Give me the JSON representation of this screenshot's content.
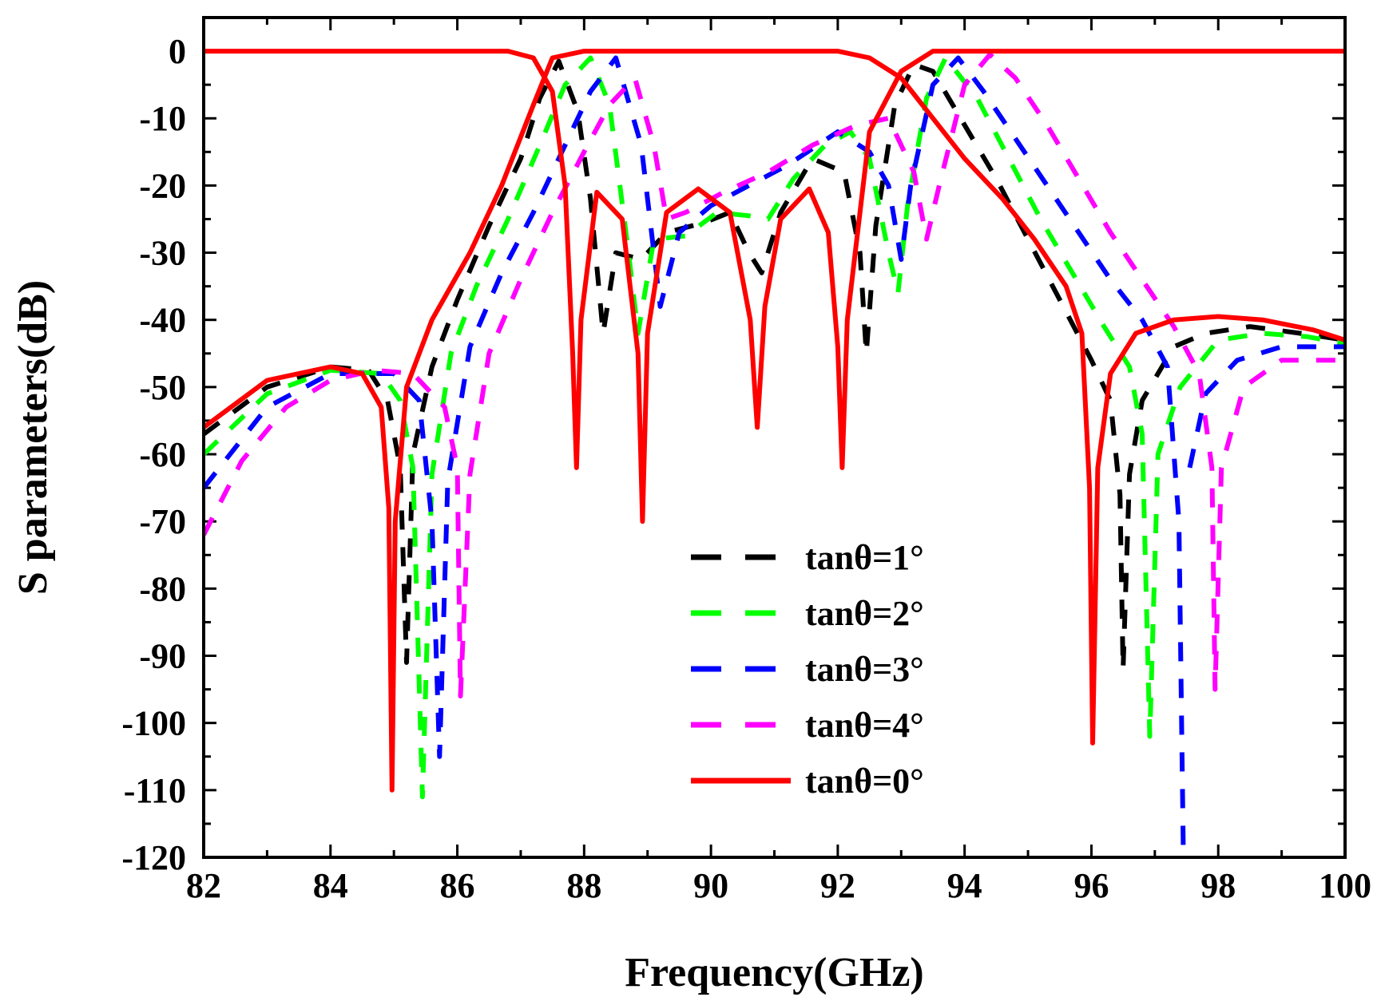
{
  "chart_data": {
    "type": "line",
    "title": "",
    "xlabel": "Frequency(GHz)",
    "ylabel": "S parameters(dB)",
    "xlim": [
      82,
      100
    ],
    "ylim": [
      -120,
      5
    ],
    "xticks": [
      82,
      84,
      86,
      88,
      90,
      92,
      94,
      96,
      98,
      100
    ],
    "yticks": [
      0,
      -10,
      -20,
      -30,
      -40,
      -50,
      -60,
      -70,
      -80,
      -90,
      -100,
      -110,
      -120
    ],
    "x_tick_labels": [
      "82",
      "84",
      "86",
      "88",
      "90",
      "92",
      "94",
      "96",
      "98",
      "100"
    ],
    "y_tick_labels": [
      "0",
      "-10",
      "-20",
      "-30",
      "-40",
      "-50",
      "-60",
      "-70",
      "-80",
      "-90",
      "-100",
      "-110",
      "-120"
    ],
    "grid": false,
    "legend_position": "bottom-center",
    "series": [
      {
        "name": "tanθ=1°",
        "color": "#000000",
        "dash": "dashed",
        "curves": [
          [
            [
              82,
              -57
            ],
            [
              83,
              -50
            ],
            [
              84,
              -47
            ],
            [
              84.6,
              -47.5
            ],
            [
              84.9,
              -52
            ],
            [
              85.1,
              -62
            ],
            [
              85.2,
              -91
            ],
            [
              85.3,
              -60
            ],
            [
              85.6,
              -47
            ],
            [
              86,
              -37
            ],
            [
              86.5,
              -26
            ],
            [
              87,
              -16
            ],
            [
              87.3,
              -7
            ],
            [
              87.6,
              -1.5
            ],
            [
              87.9,
              -9
            ],
            [
              88.1,
              -22
            ],
            [
              88.3,
              -42
            ],
            [
              88.5,
              -30
            ],
            [
              88.9,
              -31
            ],
            [
              89.3,
              -27
            ],
            [
              89.9,
              -25.5
            ],
            [
              90.3,
              -24
            ],
            [
              90.6,
              -30
            ],
            [
              90.8,
              -33
            ],
            [
              91.1,
              -24
            ],
            [
              91.6,
              -16
            ],
            [
              92.1,
              -18
            ],
            [
              92.35,
              -30
            ],
            [
              92.45,
              -45
            ],
            [
              92.6,
              -26
            ],
            [
              92.9,
              -8
            ],
            [
              93.2,
              -2
            ],
            [
              93.5,
              -3
            ],
            [
              94,
              -11
            ],
            [
              94.5,
              -19
            ],
            [
              95,
              -28
            ],
            [
              95.5,
              -37
            ],
            [
              96,
              -46
            ],
            [
              96.3,
              -52
            ],
            [
              96.45,
              -66
            ],
            [
              96.5,
              -92
            ],
            [
              96.6,
              -63
            ],
            [
              96.8,
              -52
            ],
            [
              97.3,
              -44
            ],
            [
              97.8,
              -42
            ],
            [
              98.5,
              -41
            ],
            [
              99.3,
              -42
            ],
            [
              100,
              -43
            ]
          ]
        ]
      },
      {
        "name": "tanθ=2°",
        "color": "#00ff00",
        "dash": "dashed",
        "curves": [
          [
            [
              82,
              -60
            ],
            [
              83,
              -51
            ],
            [
              84,
              -47.5
            ],
            [
              84.8,
              -48
            ],
            [
              85.1,
              -52
            ],
            [
              85.3,
              -62
            ],
            [
              85.45,
              -111
            ],
            [
              85.6,
              -63
            ],
            [
              85.9,
              -45
            ],
            [
              86.3,
              -35
            ],
            [
              86.8,
              -25
            ],
            [
              87.3,
              -14
            ],
            [
              87.7,
              -5
            ],
            [
              88.1,
              -1
            ],
            [
              88.4,
              -8
            ],
            [
              88.7,
              -30
            ],
            [
              88.85,
              -42
            ],
            [
              89.1,
              -28
            ],
            [
              89.6,
              -27.5
            ],
            [
              90.1,
              -24
            ],
            [
              90.6,
              -24.5
            ],
            [
              90.9,
              -25
            ],
            [
              91.3,
              -19
            ],
            [
              91.8,
              -14
            ],
            [
              92.2,
              -12
            ],
            [
              92.5,
              -16
            ],
            [
              92.8,
              -30
            ],
            [
              92.95,
              -36
            ],
            [
              93.1,
              -23
            ],
            [
              93.4,
              -7
            ],
            [
              93.7,
              -1
            ],
            [
              94.2,
              -7
            ],
            [
              94.7,
              -16
            ],
            [
              95.2,
              -25
            ],
            [
              95.7,
              -33
            ],
            [
              96.2,
              -41
            ],
            [
              96.6,
              -47
            ],
            [
              96.8,
              -57
            ],
            [
              96.92,
              -102
            ],
            [
              97.05,
              -60
            ],
            [
              97.4,
              -50
            ],
            [
              98,
              -43
            ],
            [
              98.7,
              -42
            ],
            [
              99.4,
              -42.5
            ],
            [
              100,
              -43.5
            ]
          ]
        ]
      },
      {
        "name": "tanθ=3°",
        "color": "#0000ff",
        "dash": "dashed",
        "curves": [
          [
            [
              82,
              -65
            ],
            [
              83,
              -53
            ],
            [
              84,
              -48
            ],
            [
              85,
              -48
            ],
            [
              85.4,
              -52
            ],
            [
              85.6,
              -70
            ],
            [
              85.72,
              -105
            ],
            [
              85.85,
              -64
            ],
            [
              86.2,
              -44
            ],
            [
              86.7,
              -33
            ],
            [
              87.2,
              -24
            ],
            [
              87.7,
              -14
            ],
            [
              88.1,
              -6
            ],
            [
              88.5,
              -1
            ],
            [
              88.9,
              -14
            ],
            [
              89.1,
              -30
            ],
            [
              89.2,
              -38
            ],
            [
              89.5,
              -27
            ],
            [
              90,
              -23
            ],
            [
              90.6,
              -20
            ],
            [
              91.2,
              -17
            ],
            [
              92,
              -12
            ],
            [
              92.5,
              -15
            ],
            [
              92.8,
              -20
            ],
            [
              93.0,
              -31
            ],
            [
              93.15,
              -20
            ],
            [
              93.5,
              -5
            ],
            [
              93.9,
              -1
            ],
            [
              94.3,
              -6
            ],
            [
              94.8,
              -13
            ],
            [
              95.3,
              -20
            ],
            [
              95.8,
              -27
            ],
            [
              96.3,
              -34
            ],
            [
              96.8,
              -40
            ],
            [
              97.2,
              -47
            ],
            [
              97.38,
              -70
            ],
            [
              97.45,
              -120
            ]
          ],
          [
            [
              97.55,
              -62
            ],
            [
              97.8,
              -51
            ],
            [
              98.3,
              -46
            ],
            [
              99,
              -44
            ],
            [
              100,
              -44
            ]
          ]
        ]
      },
      {
        "name": "tanθ=4°",
        "color": "#ff00ff",
        "dash": "dashed",
        "curves": [
          [
            [
              82,
              -72
            ],
            [
              82.6,
              -61
            ],
            [
              83.3,
              -53
            ],
            [
              84,
              -49
            ],
            [
              84.7,
              -47.5
            ],
            [
              85.3,
              -48
            ],
            [
              85.8,
              -53
            ],
            [
              86.0,
              -62
            ],
            [
              86.05,
              -96
            ],
            [
              86.2,
              -63
            ],
            [
              86.5,
              -45
            ],
            [
              87,
              -34
            ],
            [
              87.5,
              -24
            ],
            [
              88,
              -15
            ],
            [
              88.4,
              -8
            ],
            [
              88.8,
              -4
            ],
            [
              89.1,
              -14
            ],
            [
              89.3,
              -25
            ],
            [
              89.6,
              -24
            ],
            [
              90.2,
              -21
            ],
            [
              90.9,
              -18
            ],
            [
              91.6,
              -14
            ],
            [
              92.3,
              -11
            ],
            [
              92.8,
              -10
            ],
            [
              93.2,
              -18
            ],
            [
              93.4,
              -28
            ],
            [
              93.6,
              -20
            ],
            [
              94,
              -5
            ],
            [
              94.4,
              -0.5
            ],
            [
              94.8,
              -4
            ],
            [
              95.3,
              -11
            ],
            [
              95.8,
              -19
            ],
            [
              96.3,
              -27
            ],
            [
              96.8,
              -34
            ],
            [
              97.3,
              -41
            ],
            [
              97.7,
              -48
            ],
            [
              97.9,
              -62
            ],
            [
              97.95,
              -95
            ],
            [
              98.05,
              -62
            ],
            [
              98.4,
              -50
            ],
            [
              99,
              -46
            ],
            [
              100,
              -46
            ]
          ]
        ]
      },
      {
        "name": "tanθ=0°",
        "color": "#ff0000",
        "dash": "solid",
        "curves": [
          [
            [
              82,
              -56
            ],
            [
              83,
              -49
            ],
            [
              84,
              -47
            ],
            [
              84.5,
              -48
            ],
            [
              84.8,
              -53
            ],
            [
              84.92,
              -68
            ],
            [
              84.97,
              -110
            ],
            [
              85.02,
              -70
            ],
            [
              85.2,
              -50
            ],
            [
              85.6,
              -40
            ],
            [
              86.2,
              -30
            ],
            [
              86.7,
              -20
            ],
            [
              87.2,
              -8
            ],
            [
              87.5,
              -1
            ],
            [
              88,
              0
            ],
            [
              92,
              0
            ],
            [
              92.5,
              -1
            ],
            [
              93,
              -4
            ],
            [
              93.5,
              -10
            ],
            [
              94,
              -16
            ],
            [
              94.6,
              -22
            ],
            [
              95.1,
              -28
            ],
            [
              95.6,
              -35
            ],
            [
              95.85,
              -42
            ],
            [
              95.97,
              -65
            ],
            [
              96.02,
              -103
            ],
            [
              96.1,
              -62
            ],
            [
              96.3,
              -48
            ],
            [
              96.7,
              -42
            ],
            [
              97.3,
              -40
            ],
            [
              98,
              -39.5
            ],
            [
              98.7,
              -40
            ],
            [
              99.5,
              -41.5
            ],
            [
              100,
              -43
            ]
          ],
          [
            [
              82,
              0
            ],
            [
              86.8,
              0
            ],
            [
              87.2,
              -1
            ],
            [
              87.5,
              -6
            ],
            [
              87.7,
              -20
            ],
            [
              87.82,
              -45
            ],
            [
              87.88,
              -62
            ],
            [
              87.95,
              -40
            ],
            [
              88.2,
              -21
            ],
            [
              88.6,
              -25
            ],
            [
              88.85,
              -45
            ],
            [
              88.92,
              -70
            ],
            [
              89.0,
              -42
            ],
            [
              89.3,
              -24
            ],
            [
              89.8,
              -20.5
            ],
            [
              90.3,
              -24
            ],
            [
              90.62,
              -40
            ],
            [
              90.73,
              -56
            ],
            [
              90.85,
              -38
            ],
            [
              91.1,
              -25
            ],
            [
              91.55,
              -20.5
            ],
            [
              91.85,
              -27
            ],
            [
              92.0,
              -44
            ],
            [
              92.07,
              -62
            ],
            [
              92.15,
              -40
            ],
            [
              92.5,
              -12
            ],
            [
              93,
              -3
            ],
            [
              93.5,
              0
            ],
            [
              100,
              0
            ]
          ]
        ]
      }
    ]
  }
}
